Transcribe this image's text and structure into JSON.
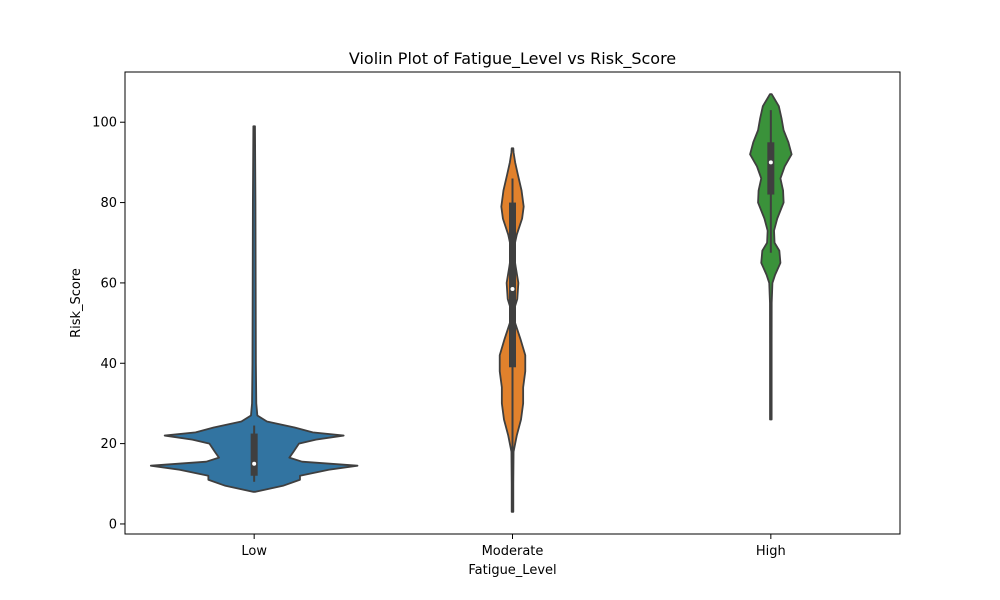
{
  "chart_data": {
    "type": "violin",
    "title": "Violin Plot of Fatigue_Level vs Risk_Score",
    "xlabel": "Fatigue_Level",
    "ylabel": "Risk_Score",
    "ylim": [
      -2.5,
      112.5
    ],
    "yticks": [
      0,
      20,
      40,
      60,
      80,
      100
    ],
    "categories": [
      "Low",
      "Moderate",
      "High"
    ],
    "colors": [
      "#3274a1",
      "#e1812c",
      "#3a923a"
    ],
    "edge_color": "#3f3f3f",
    "grid": false,
    "series": [
      {
        "category": "Low",
        "range": [
          8,
          99
        ],
        "median": 15,
        "quartiles": [
          12,
          22.5
        ],
        "whiskers": [
          10.5,
          24.5
        ],
        "profile": [
          [
            8,
            0.0
          ],
          [
            9.5,
            0.27
          ],
          [
            11,
            0.43
          ],
          [
            12,
            0.43
          ],
          [
            13.5,
            0.7
          ],
          [
            14.5,
            0.97
          ],
          [
            15.5,
            0.45
          ],
          [
            16.5,
            0.33
          ],
          [
            18,
            0.37
          ],
          [
            20,
            0.42
          ],
          [
            21,
            0.58
          ],
          [
            22,
            0.84
          ],
          [
            22.8,
            0.55
          ],
          [
            24,
            0.38
          ],
          [
            25.5,
            0.12
          ],
          [
            27,
            0.03
          ],
          [
            30,
            0.02
          ],
          [
            40,
            0.016
          ],
          [
            60,
            0.014
          ],
          [
            80,
            0.012
          ],
          [
            99,
            0.0
          ]
        ]
      },
      {
        "category": "Moderate",
        "range": [
          3,
          93.5
        ],
        "median": 58.5,
        "quartiles": [
          39,
          80
        ],
        "whiskers": [
          3,
          86
        ],
        "profile": [
          [
            3,
            0.005
          ],
          [
            10,
            0.005
          ],
          [
            18,
            0.01
          ],
          [
            22,
            0.04
          ],
          [
            26,
            0.08
          ],
          [
            30,
            0.1
          ],
          [
            34,
            0.1
          ],
          [
            38,
            0.12
          ],
          [
            42,
            0.12
          ],
          [
            46,
            0.075
          ],
          [
            50,
            0.025
          ],
          [
            53,
            0.01
          ],
          [
            56,
            0.045
          ],
          [
            60,
            0.055
          ],
          [
            64,
            0.03
          ],
          [
            68,
            0.007
          ],
          [
            72,
            0.04
          ],
          [
            76,
            0.09
          ],
          [
            79,
            0.105
          ],
          [
            83,
            0.085
          ],
          [
            87,
            0.05
          ],
          [
            90,
            0.025
          ],
          [
            92.5,
            0.01
          ],
          [
            93.5,
            0.0
          ]
        ]
      },
      {
        "category": "High",
        "range": [
          26,
          107
        ],
        "median": 90,
        "quartiles": [
          82,
          95
        ],
        "whiskers": [
          67.5,
          103
        ],
        "profile": [
          [
            26,
            0.0
          ],
          [
            35,
            0.005
          ],
          [
            45,
            0.005
          ],
          [
            55,
            0.008
          ],
          [
            60,
            0.015
          ],
          [
            62,
            0.04
          ],
          [
            65,
            0.09
          ],
          [
            68,
            0.08
          ],
          [
            70,
            0.035
          ],
          [
            73,
            0.03
          ],
          [
            76,
            0.06
          ],
          [
            80,
            0.12
          ],
          [
            83,
            0.115
          ],
          [
            86,
            0.09
          ],
          [
            89,
            0.13
          ],
          [
            92,
            0.195
          ],
          [
            95,
            0.165
          ],
          [
            98,
            0.12
          ],
          [
            101,
            0.1
          ],
          [
            104,
            0.075
          ],
          [
            106,
            0.03
          ],
          [
            107,
            0.0
          ]
        ]
      }
    ]
  }
}
